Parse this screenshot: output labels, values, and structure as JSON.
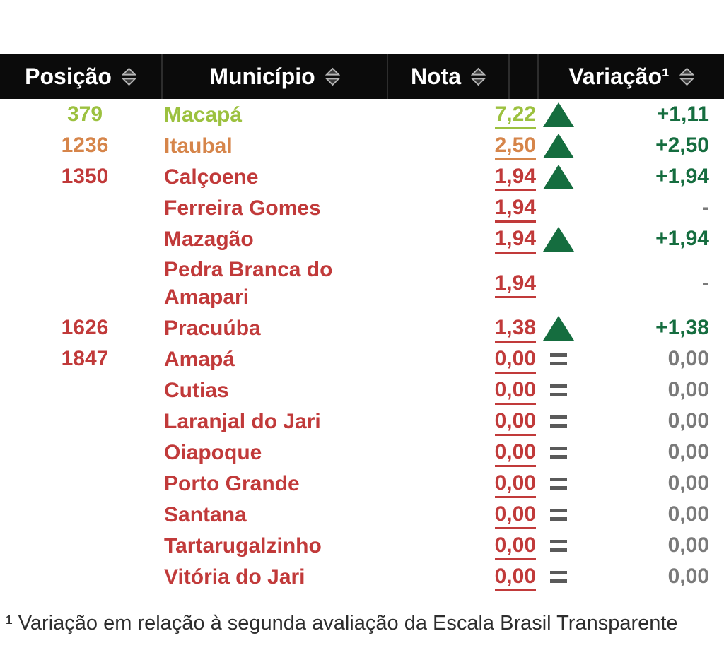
{
  "table": {
    "columns": [
      {
        "key": "posicao",
        "label": "Posição"
      },
      {
        "key": "municipio",
        "label": "Município"
      },
      {
        "key": "nota",
        "label": "Nota"
      },
      {
        "key": "variacao",
        "label": "Variação¹"
      }
    ],
    "rows": [
      {
        "posicao": "379",
        "municipio": "Macapá",
        "nota": "7,22",
        "trend": "up",
        "variacao": "+1,11",
        "tier": "green"
      },
      {
        "posicao": "1236",
        "municipio": "Itaubal",
        "nota": "2,50",
        "trend": "up",
        "variacao": "+2,50",
        "tier": "orange"
      },
      {
        "posicao": "1350",
        "municipio": "Calçoene",
        "nota": "1,94",
        "trend": "up",
        "variacao": "+1,94",
        "tier": "red"
      },
      {
        "posicao": "",
        "municipio": "Ferreira Gomes",
        "nota": "1,94",
        "trend": "none",
        "variacao": "-",
        "tier": "red"
      },
      {
        "posicao": "",
        "municipio": "Mazagão",
        "nota": "1,94",
        "trend": "up",
        "variacao": "+1,94",
        "tier": "red"
      },
      {
        "posicao": "",
        "municipio": "Pedra Branca do Amapari",
        "nota": "1,94",
        "trend": "none",
        "variacao": "-",
        "tier": "red"
      },
      {
        "posicao": "1626",
        "municipio": "Pracuúba",
        "nota": "1,38",
        "trend": "up",
        "variacao": "+1,38",
        "tier": "red"
      },
      {
        "posicao": "1847",
        "municipio": "Amapá",
        "nota": "0,00",
        "trend": "equal",
        "variacao": "0,00",
        "tier": "red"
      },
      {
        "posicao": "",
        "municipio": "Cutias",
        "nota": "0,00",
        "trend": "equal",
        "variacao": "0,00",
        "tier": "red"
      },
      {
        "posicao": "",
        "municipio": "Laranjal do Jari",
        "nota": "0,00",
        "trend": "equal",
        "variacao": "0,00",
        "tier": "red"
      },
      {
        "posicao": "",
        "municipio": "Oiapoque",
        "nota": "0,00",
        "trend": "equal",
        "variacao": "0,00",
        "tier": "red"
      },
      {
        "posicao": "",
        "municipio": "Porto Grande",
        "nota": "0,00",
        "trend": "equal",
        "variacao": "0,00",
        "tier": "red"
      },
      {
        "posicao": "",
        "municipio": "Santana",
        "nota": "0,00",
        "trend": "equal",
        "variacao": "0,00",
        "tier": "red"
      },
      {
        "posicao": "",
        "municipio": "Tartarugalzinho",
        "nota": "0,00",
        "trend": "equal",
        "variacao": "0,00",
        "tier": "red"
      },
      {
        "posicao": "",
        "municipio": "Vitória do Jari",
        "nota": "0,00",
        "trend": "equal",
        "variacao": "0,00",
        "tier": "red"
      }
    ]
  },
  "footnote": "¹ Variação em relação à segunda avaliação da Escala Brasil Transparente",
  "colors": {
    "header_bg": "#0b0b0b",
    "header_text": "#ffffff",
    "tier_green": "#9cc13f",
    "tier_orange": "#d6854a",
    "tier_red": "#c13a3a",
    "trend_up_green": "#156d3f",
    "neutral_gray": "#7a7a7a"
  }
}
